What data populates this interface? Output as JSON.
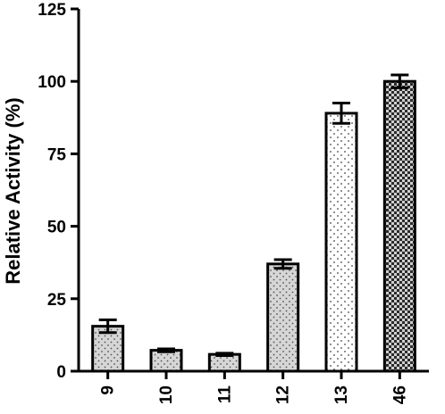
{
  "chart_data": {
    "type": "bar",
    "title": "",
    "xlabel": "",
    "ylabel": "Relative Activity (%)",
    "ylim": [
      0,
      125
    ],
    "yticks": [
      0,
      25,
      50,
      75,
      100,
      125
    ],
    "grid": false,
    "legend": "none",
    "categories": [
      "9",
      "10",
      "11",
      "12",
      "13",
      "46"
    ],
    "values": [
      15.5,
      7.2,
      5.8,
      37,
      89,
      100
    ],
    "errors": [
      2.2,
      0.5,
      0.4,
      1.5,
      3.5,
      2.2
    ],
    "patterns": [
      "dots-gray",
      "dots-gray",
      "dots-gray",
      "dots-gray",
      "dots-white",
      "checker-dark"
    ],
    "colors": {
      "bar_fill_gray": "#d6d6d6",
      "bar_fill_white": "#ffffff",
      "checker_dark": "#2b2b2b",
      "checker_light": "#cfcfcf",
      "axis": "#000000"
    }
  }
}
